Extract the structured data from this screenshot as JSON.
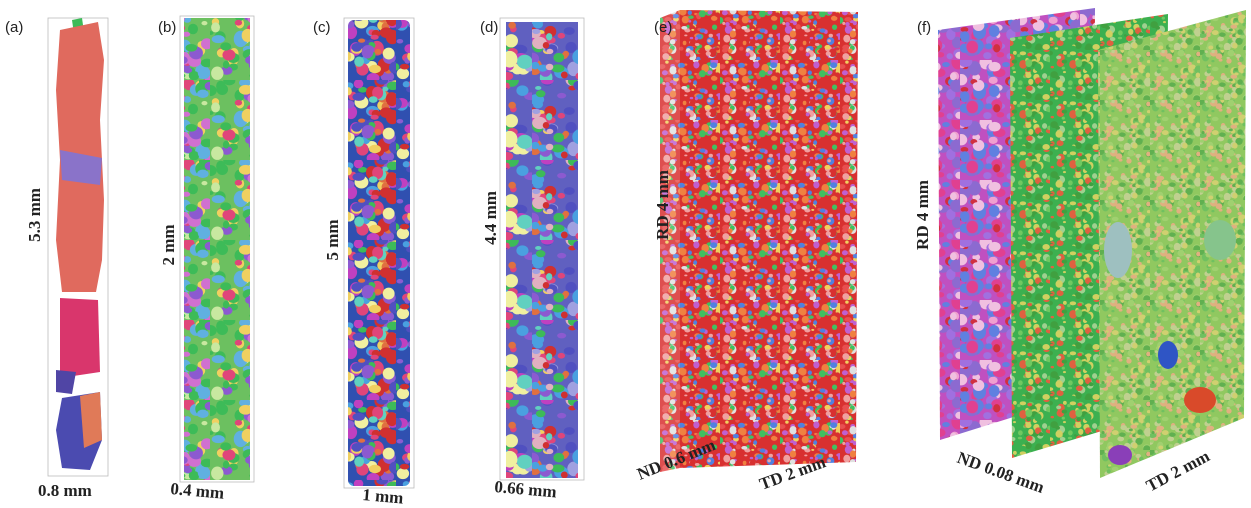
{
  "panels": [
    {
      "label": "(a)",
      "height": "5.3 mm",
      "width": "0.8 mm"
    },
    {
      "label": "(b)",
      "height": "2 mm",
      "width": "0.4 mm"
    },
    {
      "label": "(c)",
      "height": "5 mm",
      "width": "1 mm"
    },
    {
      "label": "(d)",
      "height": "4.4 mm",
      "width": "0.66 mm"
    },
    {
      "label": "(e)",
      "height": "RD 4 mm",
      "depth": "ND 0.6 mm",
      "width": "TD 2 mm"
    },
    {
      "label": "(f)",
      "height": "RD 4 mm",
      "depth": "ND 0.08 mm",
      "width": "TD 2 mm"
    }
  ]
}
